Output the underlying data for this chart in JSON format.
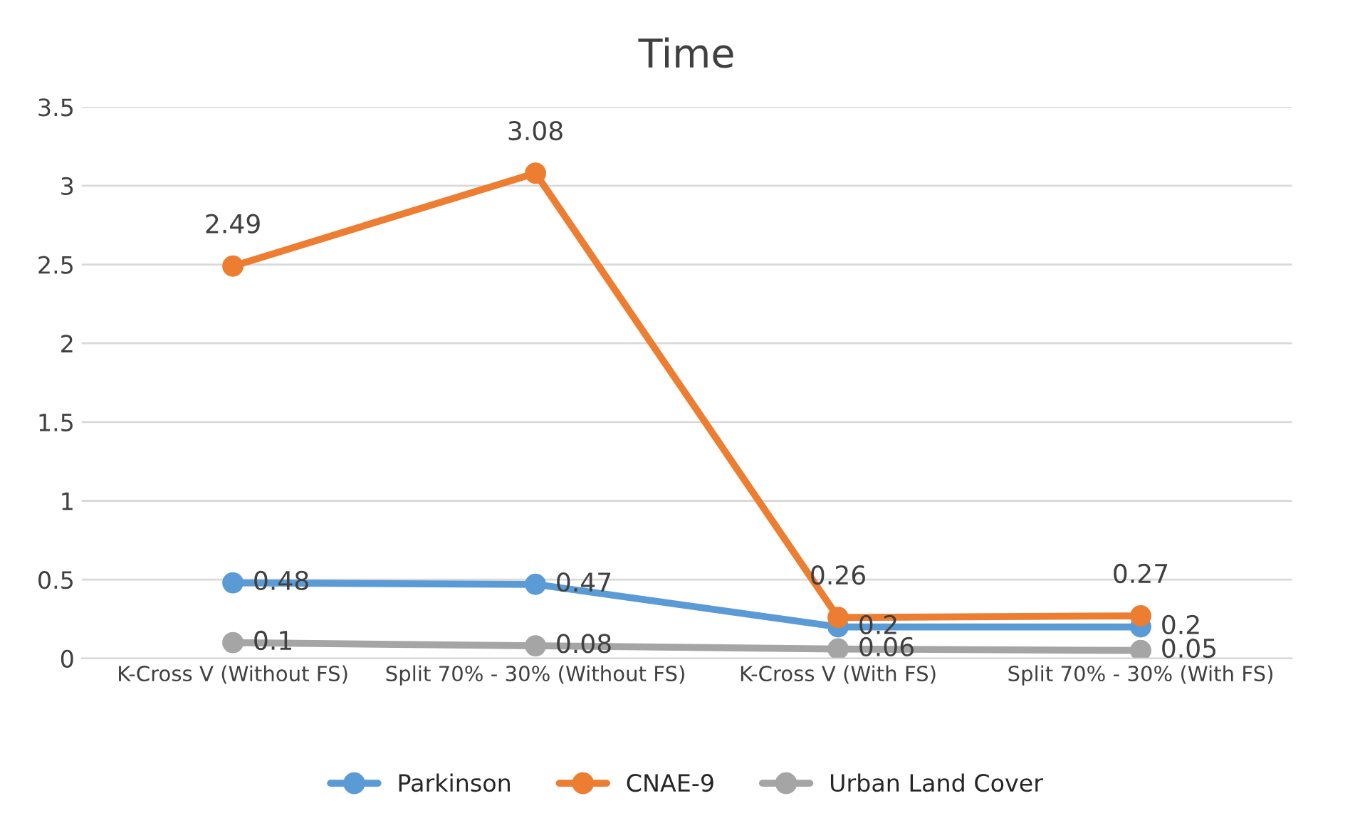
{
  "chart_data": {
    "type": "line",
    "title": "Time",
    "categories": [
      "K-Cross V (Without FS)",
      "Split 70% - 30% (Without FS)",
      "K-Cross V (With FS)",
      "Split 70% - 30% (With FS)"
    ],
    "series": [
      {
        "name": "Parkinson",
        "color": "#5b9bd5",
        "values": [
          0.48,
          0.47,
          0.2,
          0.2
        ]
      },
      {
        "name": "CNAE-9",
        "color": "#ed7d31",
        "values": [
          2.49,
          3.08,
          0.26,
          0.27
        ]
      },
      {
        "name": "Urban Land Cover",
        "color": "#a5a5a5",
        "values": [
          0.1,
          0.08,
          0.06,
          0.05
        ]
      }
    ],
    "ylim": [
      0,
      3.5
    ],
    "yticks": [
      0,
      0.5,
      1,
      1.5,
      2,
      2.5,
      3,
      3.5
    ],
    "grid": "y",
    "legend": "bottom",
    "marker": "circle",
    "line_style": "solid",
    "data_labels": true
  }
}
